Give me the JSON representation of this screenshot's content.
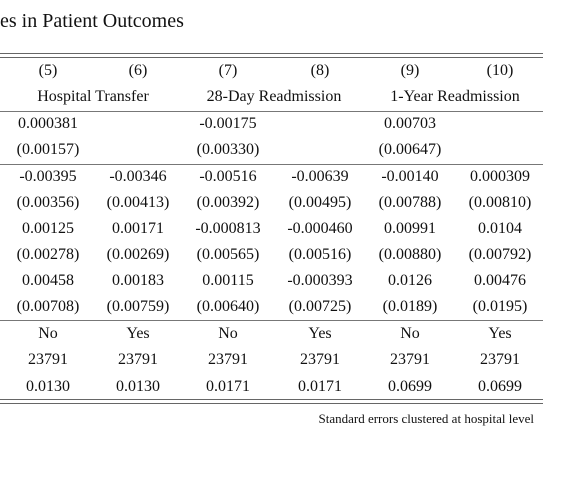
{
  "title": "es in Patient Outcomes",
  "columns": [
    "(5)",
    "(6)",
    "(7)",
    "(8)",
    "(9)",
    "(10)"
  ],
  "groups": [
    "Hospital Transfer",
    "28-Day Readmission",
    "1-Year Readmission"
  ],
  "rows": [
    [
      "0.000381",
      "",
      "-0.00175",
      "",
      "0.00703",
      ""
    ],
    [
      "(0.00157)",
      "",
      "(0.00330)",
      "",
      "(0.00647)",
      ""
    ],
    [
      "-0.00395",
      "-0.00346",
      "-0.00516",
      "-0.00639",
      "-0.00140",
      "0.000309"
    ],
    [
      "(0.00356)",
      "(0.00413)",
      "(0.00392)",
      "(0.00495)",
      "(0.00788)",
      "(0.00810)"
    ],
    [
      "0.00125",
      "0.00171",
      "-0.000813",
      "-0.000460",
      "0.00991",
      "0.0104"
    ],
    [
      "(0.00278)",
      "(0.00269)",
      "(0.00565)",
      "(0.00516)",
      "(0.00880)",
      "(0.00792)"
    ],
    [
      "0.00458",
      "0.00183",
      "0.00115",
      "-0.000393",
      "0.0126",
      "0.00476"
    ],
    [
      "(0.00708)",
      "(0.00759)",
      "(0.00640)",
      "(0.00725)",
      "(0.0189)",
      "(0.0195)"
    ],
    [
      "No",
      "Yes",
      "No",
      "Yes",
      "No",
      "Yes"
    ],
    [
      "23791",
      "23791",
      "23791",
      "23791",
      "23791",
      "23791"
    ],
    [
      "0.0130",
      "0.0130",
      "0.0171",
      "0.0171",
      "0.0699",
      "0.0699"
    ]
  ],
  "note": "Standard errors clustered at hospital level"
}
